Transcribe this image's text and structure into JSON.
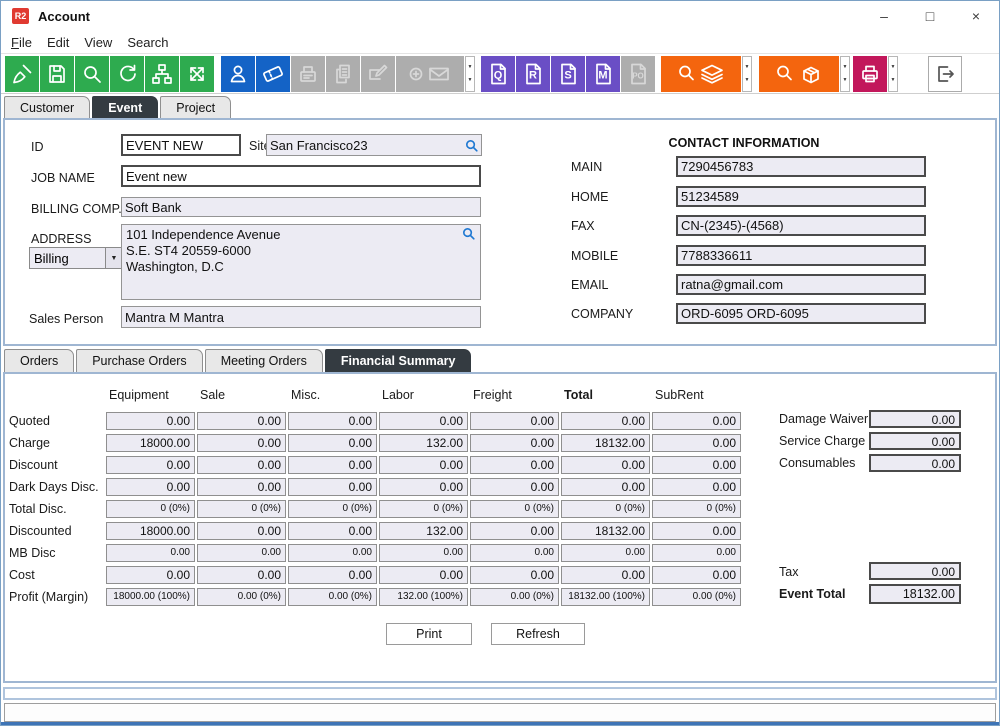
{
  "window": {
    "app_badge": "R2",
    "title": "Account",
    "controls": {
      "minimize": "–",
      "maximize": "□",
      "close": "×"
    }
  },
  "menu": {
    "items": [
      {
        "label": "File",
        "accel": true
      },
      {
        "label": "Edit",
        "accel": false
      },
      {
        "label": "View",
        "accel": false
      },
      {
        "label": "Search",
        "accel": false
      }
    ]
  },
  "toolbar": {
    "items": [
      {
        "type": "button",
        "name": "clear-button",
        "icon": "broom-icon",
        "color": "green"
      },
      {
        "type": "button",
        "name": "save-button",
        "icon": "save-icon",
        "color": "green"
      },
      {
        "type": "button",
        "name": "search-button",
        "icon": "search-icon",
        "color": "green"
      },
      {
        "type": "button",
        "name": "refresh-button",
        "icon": "refresh-icon",
        "color": "green"
      },
      {
        "type": "button",
        "name": "hierarchy-button",
        "icon": "hierarchy-icon",
        "color": "green"
      },
      {
        "type": "button",
        "name": "expand-button",
        "icon": "expand-icon",
        "color": "green"
      },
      {
        "type": "gap",
        "px": 6
      },
      {
        "type": "button",
        "name": "contact-button",
        "icon": "person-icon",
        "color": "blue"
      },
      {
        "type": "button",
        "name": "ticket-button",
        "icon": "ticket-icon",
        "color": "blue"
      },
      {
        "type": "button",
        "name": "register-button",
        "icon": "register-icon",
        "color": "disabled"
      },
      {
        "type": "button",
        "name": "copy-button",
        "icon": "copy-icon",
        "color": "disabled"
      },
      {
        "type": "button",
        "name": "edit-button",
        "icon": "edit-icon",
        "color": "disabled"
      },
      {
        "type": "button",
        "name": "new-mail-button",
        "icon": "mail-add-icon",
        "color": "disabled",
        "wide": 68
      },
      {
        "type": "dropdown",
        "name": "mail-dropdown"
      },
      {
        "type": "gap",
        "px": 5
      },
      {
        "type": "button",
        "name": "quote-button",
        "icon": "doc-icon",
        "letter": "Q",
        "color": "purple"
      },
      {
        "type": "button",
        "name": "reservation-button",
        "icon": "doc-icon",
        "letter": "R",
        "color": "purple"
      },
      {
        "type": "button",
        "name": "sales-order-button",
        "icon": "doc-icon",
        "letter": "S",
        "color": "purple"
      },
      {
        "type": "button",
        "name": "meeting-order-button",
        "icon": "doc-icon",
        "letter": "M",
        "color": "purple"
      },
      {
        "type": "button",
        "name": "purchase-order-button",
        "icon": "doc-icon",
        "letter": "PO",
        "color": "disabled"
      },
      {
        "type": "gap",
        "px": 5
      },
      {
        "type": "button",
        "name": "search-orders-button",
        "icon": "search-stack-icon",
        "color": "orange",
        "wide": 80
      },
      {
        "type": "dropdown",
        "name": "search-orders-dropdown"
      },
      {
        "type": "gap",
        "px": 6
      },
      {
        "type": "button",
        "name": "search-items-button",
        "icon": "search-box-icon",
        "color": "orange",
        "wide": 80
      },
      {
        "type": "dropdown",
        "name": "search-items-dropdown"
      },
      {
        "type": "gap",
        "px": 2
      },
      {
        "type": "button",
        "name": "print-toolbar-button",
        "icon": "printer-icon",
        "color": "crimson"
      },
      {
        "type": "dropdown",
        "name": "print-dropdown"
      }
    ],
    "exit": {
      "name": "exit-button",
      "icon": "exit-icon"
    }
  },
  "tabs": {
    "items": [
      {
        "label": "Customer",
        "active": false
      },
      {
        "label": "Event",
        "active": true
      },
      {
        "label": "Project",
        "active": false
      }
    ]
  },
  "form": {
    "id": {
      "label": "ID",
      "value": "EVENT NEW"
    },
    "site": {
      "label": "Site",
      "value": "San Francisco23"
    },
    "job_name": {
      "label": "JOB NAME",
      "value": "Event new"
    },
    "billing_comp": {
      "label": "BILLING COMP.",
      "value": "Soft Bank"
    },
    "address": {
      "label": "ADDRESS",
      "type_value": "Billing",
      "text": "101 Independence Avenue\nS.E. ST4 20559-6000\nWashington, D.C"
    },
    "sales_person": {
      "label": "Sales Person",
      "value": "Mantra M Mantra"
    }
  },
  "contact": {
    "title": "CONTACT INFORMATION",
    "fields": [
      {
        "label": "MAIN",
        "value": "7290456783"
      },
      {
        "label": "HOME",
        "value": "51234589"
      },
      {
        "label": "FAX",
        "value": "CN-(2345)-(4568)"
      },
      {
        "label": "MOBILE",
        "value": "7788336611"
      },
      {
        "label": "EMAIL",
        "value": "ratna@gmail.com"
      },
      {
        "label": "COMPANY",
        "value": "ORD-6095 ORD-6095"
      }
    ]
  },
  "subtabs": {
    "items": [
      {
        "label": "Orders",
        "active": false
      },
      {
        "label": "Purchase Orders",
        "active": false
      },
      {
        "label": "Meeting Orders",
        "active": false
      },
      {
        "label": "Financial Summary",
        "active": true
      }
    ]
  },
  "financial": {
    "columns": [
      {
        "label": "Equipment",
        "bold": false
      },
      {
        "label": "Sale",
        "bold": false
      },
      {
        "label": "Misc.",
        "bold": false
      },
      {
        "label": "Labor",
        "bold": false
      },
      {
        "label": "Freight",
        "bold": false
      },
      {
        "label": "Total",
        "bold": true
      },
      {
        "label": "SubRent",
        "bold": false
      }
    ],
    "rows": [
      {
        "label": "Quoted",
        "small": false,
        "values": [
          "0.00",
          "0.00",
          "0.00",
          "0.00",
          "0.00",
          "0.00",
          "0.00"
        ]
      },
      {
        "label": "Charge",
        "small": false,
        "values": [
          "18000.00",
          "0.00",
          "0.00",
          "132.00",
          "0.00",
          "18132.00",
          "0.00"
        ]
      },
      {
        "label": "Discount",
        "small": false,
        "values": [
          "0.00",
          "0.00",
          "0.00",
          "0.00",
          "0.00",
          "0.00",
          "0.00"
        ]
      },
      {
        "label": "Dark Days Disc.",
        "small": false,
        "values": [
          "0.00",
          "0.00",
          "0.00",
          "0.00",
          "0.00",
          "0.00",
          "0.00"
        ]
      },
      {
        "label": "Total Disc.",
        "small": true,
        "values": [
          "0 (0%)",
          "0 (0%)",
          "0 (0%)",
          "0 (0%)",
          "0 (0%)",
          "0 (0%)",
          "0 (0%)"
        ]
      },
      {
        "label": "Discounted",
        "small": false,
        "values": [
          "18000.00",
          "0.00",
          "0.00",
          "132.00",
          "0.00",
          "18132.00",
          "0.00"
        ]
      },
      {
        "label": "MB Disc",
        "small": true,
        "values": [
          "0.00",
          "0.00",
          "0.00",
          "0.00",
          "0.00",
          "0.00",
          "0.00"
        ]
      },
      {
        "label": "Cost",
        "small": false,
        "values": [
          "0.00",
          "0.00",
          "0.00",
          "0.00",
          "0.00",
          "0.00",
          "0.00"
        ]
      },
      {
        "label": "Profit (Margin)",
        "small": true,
        "values": [
          "18000.00 (100%)",
          "0.00 (0%)",
          "0.00 (0%)",
          "132.00 (100%)",
          "0.00 (0%)",
          "18132.00 (100%)",
          "0.00 (0%)"
        ]
      }
    ],
    "extras_top": [
      {
        "name": "damage-waiver",
        "label": "Damage Waiver",
        "value": "0.00"
      },
      {
        "name": "service-charge",
        "label": "Service Charge",
        "value": "0.00"
      },
      {
        "name": "consumables",
        "label": "Consumables",
        "value": "0.00"
      }
    ],
    "extras_bottom": [
      {
        "name": "tax",
        "label": "Tax",
        "value": "0.00",
        "bold": false
      },
      {
        "name": "event-total",
        "label": "Event Total",
        "value": "18132.00",
        "bold": true
      }
    ],
    "actions": {
      "print": "Print",
      "refresh": "Refresh"
    }
  },
  "colors": {
    "toolbar_green": "#2EAB4F",
    "toolbar_blue": "#1463C6",
    "toolbar_purple": "#6A4EC5",
    "toolbar_orange": "#F4650E",
    "toolbar_crimson": "#C2175B",
    "toolbar_disabled": "#ADADAD",
    "active_tab": "#343B41",
    "field_bg": "#ECEBF3",
    "panel_border": "#9FB6D2",
    "app_badge_red": "#E03A31",
    "lookup_icon_blue": "#1E78D2"
  }
}
